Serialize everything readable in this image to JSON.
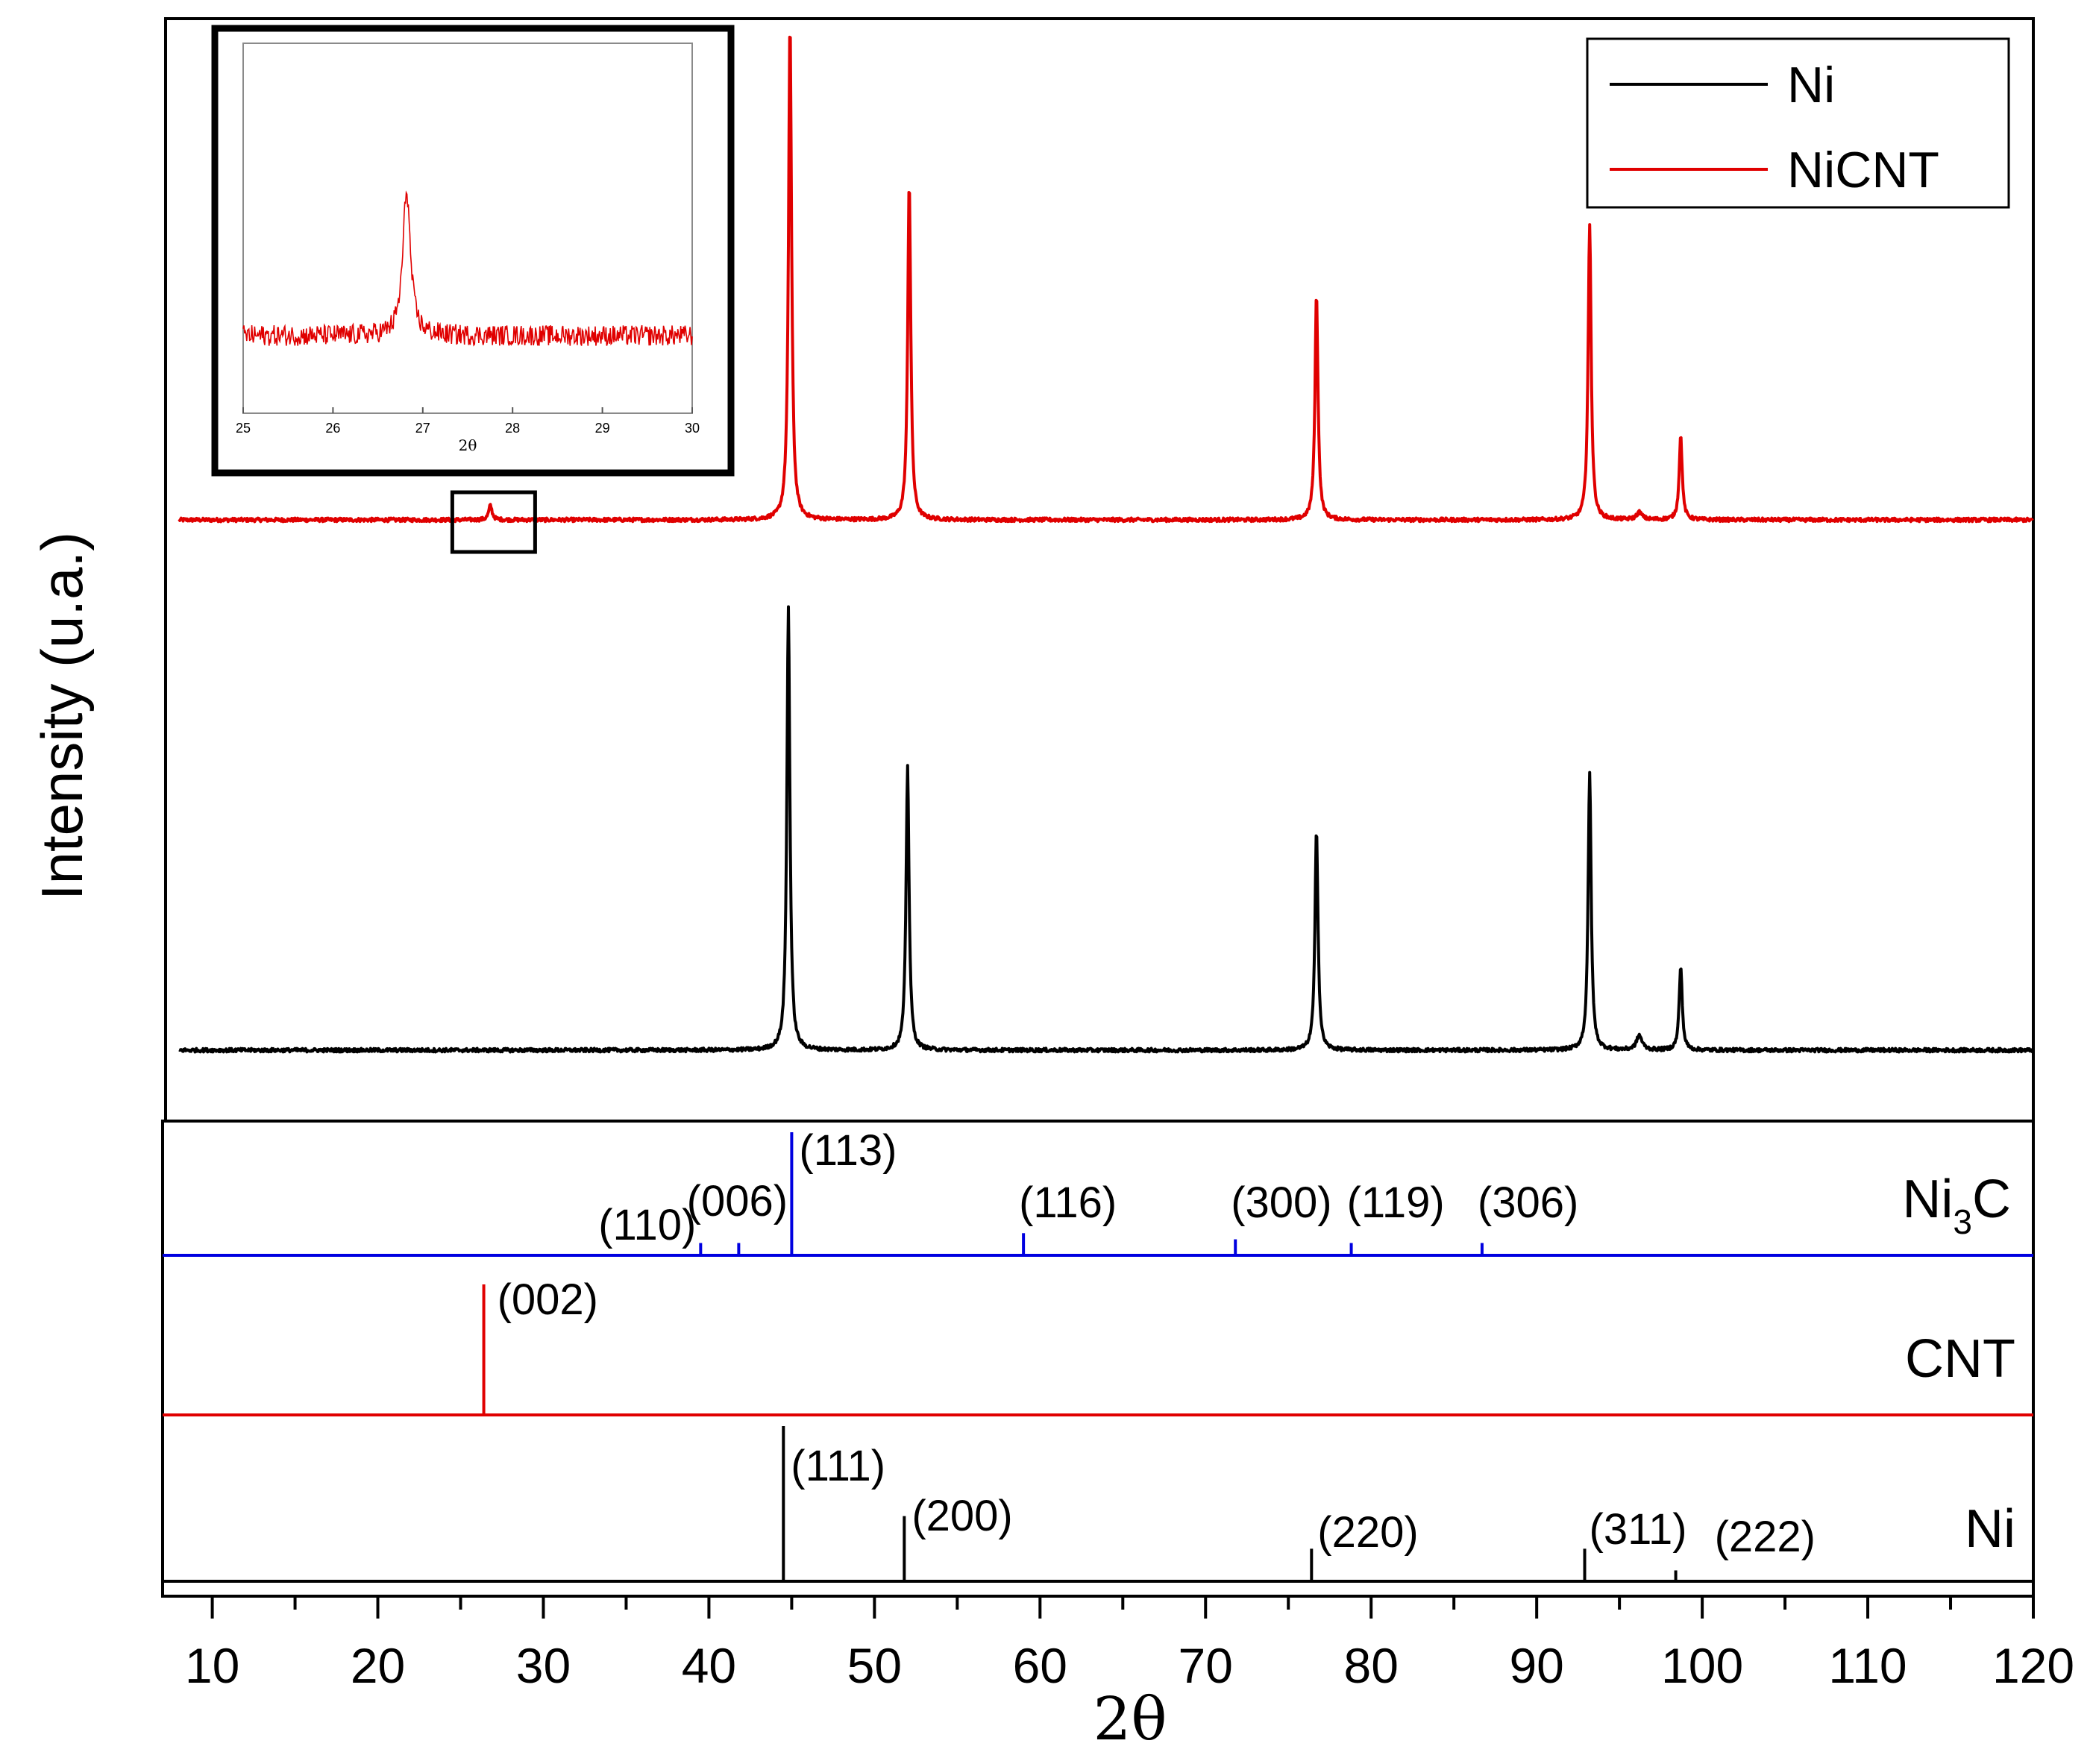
{
  "colors": {
    "ni": "#000000",
    "nicnt": "#e00000",
    "ni3c": "#0000e0",
    "cnt": "#e00000",
    "frame": "#000000"
  },
  "chart_data": [
    {
      "type": "line",
      "name": "main-xrd",
      "xlabel": "2θ",
      "ylabel": "Intensity (u.a.)",
      "xlim": [
        7,
        120
      ],
      "xticks": [
        10,
        20,
        30,
        40,
        50,
        60,
        70,
        80,
        90,
        100,
        110,
        120
      ],
      "x_minor_step": 5,
      "legend": {
        "position": "top-right",
        "entries": [
          "Ni",
          "NiCNT"
        ]
      },
      "series": [
        {
          "name": "NiCNT",
          "color": "#e00000",
          "baseline": 0,
          "noise": 0.5,
          "peaks": [
            {
              "x": 26.8,
              "h": 4,
              "w": 0.12
            },
            {
              "x": 44.9,
              "h": 137,
              "w": 0.11
            },
            {
              "x": 52.1,
              "h": 93,
              "w": 0.11
            },
            {
              "x": 76.7,
              "h": 62,
              "w": 0.11
            },
            {
              "x": 93.2,
              "h": 81,
              "w": 0.11
            },
            {
              "x": 96.2,
              "h": 2,
              "w": 0.2
            },
            {
              "x": 98.7,
              "h": 23,
              "w": 0.11
            }
          ]
        },
        {
          "name": "Ni",
          "color": "#000000",
          "baseline": 0,
          "noise": 0.5,
          "peaks": [
            {
              "x": 44.8,
              "h": 122,
              "w": 0.11
            },
            {
              "x": 52.0,
              "h": 78,
              "w": 0.11
            },
            {
              "x": 76.7,
              "h": 61,
              "w": 0.11
            },
            {
              "x": 93.2,
              "h": 76,
              "w": 0.11
            },
            {
              "x": 96.2,
              "h": 4,
              "w": 0.2
            },
            {
              "x": 98.7,
              "h": 23,
              "w": 0.11
            }
          ]
        }
      ],
      "zoom_box": {
        "x_range": [
          24.5,
          29.5
        ]
      }
    },
    {
      "type": "line",
      "name": "inset",
      "xlabel": "2θ",
      "xlim": [
        25,
        30
      ],
      "xticks": [
        25,
        26,
        27,
        28,
        29,
        30
      ],
      "series": [
        {
          "name": "NiCNT",
          "color": "#e00000",
          "baseline": 0,
          "noise": 1,
          "peaks": [
            {
              "x": 26.82,
              "h": 14,
              "w": 0.05
            }
          ]
        }
      ]
    },
    {
      "type": "bar",
      "name": "reference-patterns",
      "xlim": [
        7,
        120
      ],
      "panels": [
        {
          "name": "Ni3C",
          "label_main": "Ni",
          "label_sub": "3",
          "label_end": "C",
          "color": "#0000e0",
          "lines": [
            {
              "x": 39.5,
              "rel": 10,
              "label": "(110)"
            },
            {
              "x": 41.8,
              "rel": 10,
              "label": "(006)"
            },
            {
              "x": 45.0,
              "rel": 100,
              "label": "(113)"
            },
            {
              "x": 59.0,
              "rel": 18,
              "label": "(116)"
            },
            {
              "x": 71.8,
              "rel": 13,
              "label": "(300)"
            },
            {
              "x": 78.8,
              "rel": 10,
              "label": "(119)"
            },
            {
              "x": 86.7,
              "rel": 10,
              "label": "(306)"
            }
          ]
        },
        {
          "name": "CNT",
          "label_main": "CNT",
          "color": "#e00000",
          "lines": [
            {
              "x": 26.4,
              "rel": 100,
              "label": "(002)"
            }
          ]
        },
        {
          "name": "Ni",
          "label_main": "Ni",
          "color": "#000000",
          "lines": [
            {
              "x": 44.5,
              "rel": 100,
              "label": "(111)"
            },
            {
              "x": 51.8,
              "rel": 42,
              "label": "(200)"
            },
            {
              "x": 76.4,
              "rel": 21,
              "label": "(220)"
            },
            {
              "x": 92.9,
              "rel": 21,
              "label": "(311)"
            },
            {
              "x": 98.4,
              "rel": 7,
              "label": "(222)"
            }
          ]
        }
      ]
    }
  ]
}
